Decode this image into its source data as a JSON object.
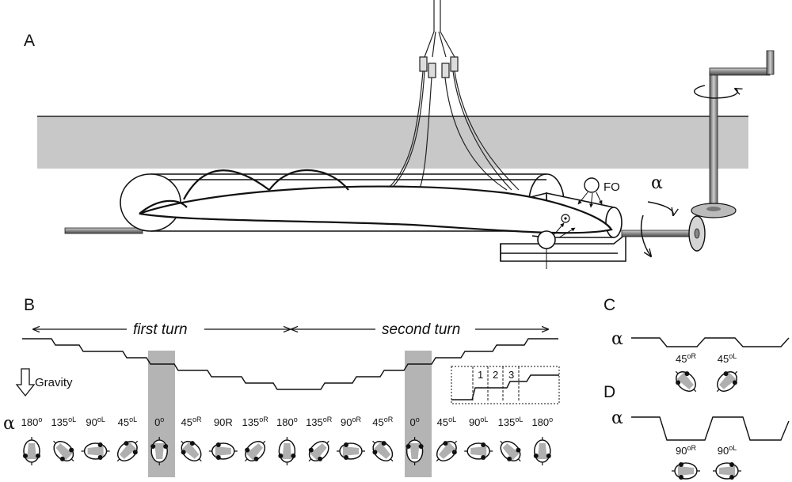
{
  "panels": {
    "a": "A",
    "b": "B",
    "c": "C",
    "d": "D"
  },
  "apparatus": {
    "fo_label": "FO",
    "alpha_symbol": "α"
  },
  "panel_b": {
    "first_turn": "first turn",
    "second_turn": "second turn",
    "gravity": "Gravity",
    "alpha_symbol": "α",
    "angles": [
      {
        "v": "180",
        "s": "o"
      },
      {
        "v": "135",
        "s": "oL"
      },
      {
        "v": "90",
        "s": "oL"
      },
      {
        "v": "45",
        "s": "oL"
      },
      {
        "v": "0",
        "s": "o"
      },
      {
        "v": "45",
        "s": "oR"
      },
      {
        "v": "90R",
        "s": ""
      },
      {
        "v": "135",
        "s": "oR"
      },
      {
        "v": "180",
        "s": "o"
      },
      {
        "v": "135",
        "s": "oR"
      },
      {
        "v": "90",
        "s": "oR"
      },
      {
        "v": "45",
        "s": "oR"
      },
      {
        "v": "0",
        "s": "o"
      },
      {
        "v": "45",
        "s": "oL"
      },
      {
        "v": "90",
        "s": "oL"
      },
      {
        "v": "135",
        "s": "oL"
      },
      {
        "v": "180",
        "s": "o"
      }
    ],
    "inset_steps": [
      "1",
      "2",
      "3"
    ]
  },
  "panel_c": {
    "alpha_symbol": "α",
    "angles": [
      {
        "v": "45",
        "s": "oR"
      },
      {
        "v": "45",
        "s": "oL"
      }
    ]
  },
  "panel_d": {
    "alpha_symbol": "α",
    "angles": [
      {
        "v": "90",
        "s": "oR"
      },
      {
        "v": "90",
        "s": "oL"
      }
    ]
  }
}
